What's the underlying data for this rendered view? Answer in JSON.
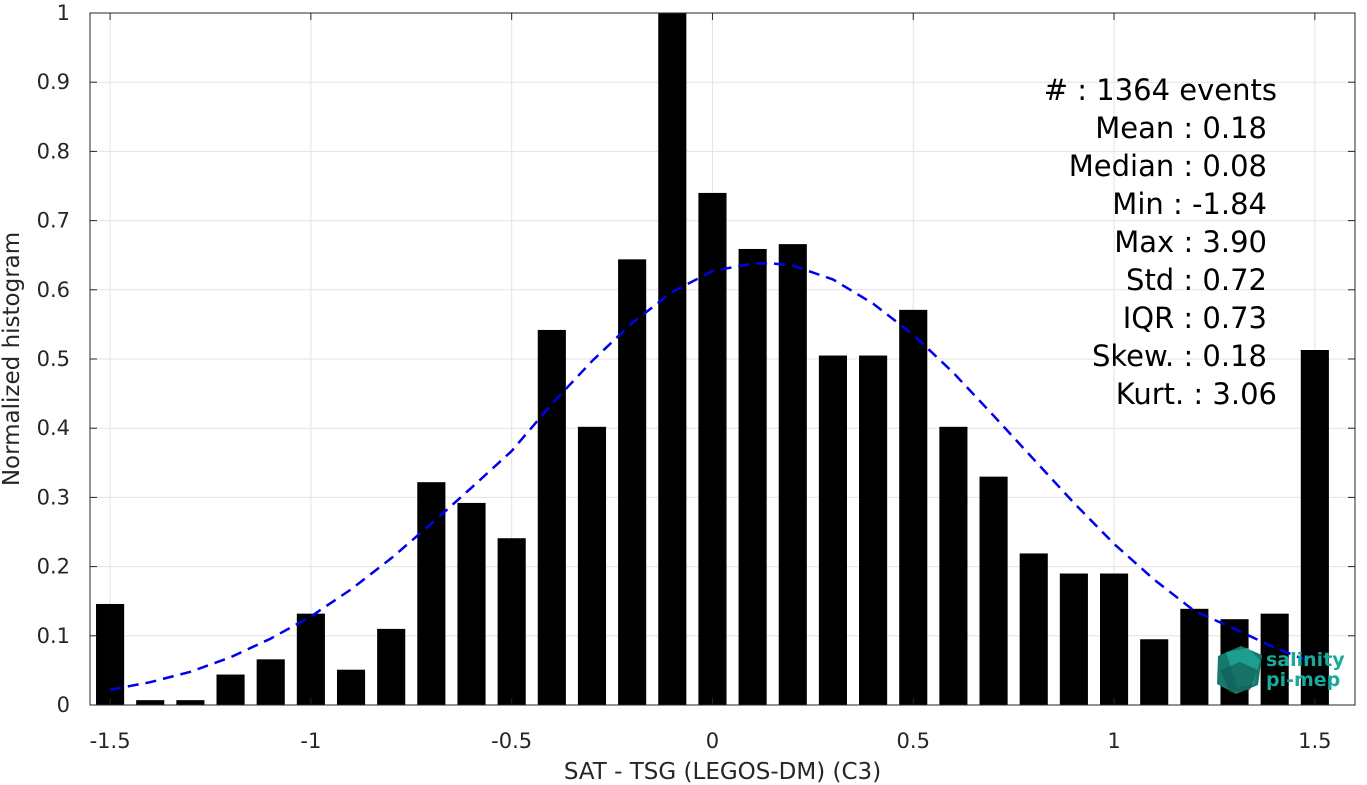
{
  "chart_data": {
    "type": "bar",
    "xlabel": "SAT - TSG (LEGOS-DM) (C3)",
    "ylabel": "Normalized histogram",
    "xlim": [
      -1.55,
      1.6
    ],
    "ylim": [
      0,
      1
    ],
    "grid": true,
    "x_ticks": [
      -1.5,
      -1,
      -0.5,
      0,
      0.5,
      1,
      1.5
    ],
    "x_tick_labels": [
      "-1.5",
      "-1",
      "-0.5",
      "0",
      "0.5",
      "1",
      "1.5"
    ],
    "y_ticks": [
      0,
      0.1,
      0.2,
      0.3,
      0.4,
      0.5,
      0.6,
      0.7,
      0.8,
      0.9,
      1
    ],
    "y_tick_labels": [
      "0",
      "0.1",
      "0.2",
      "0.3",
      "0.4",
      "0.5",
      "0.6",
      "0.7",
      "0.8",
      "0.9",
      "1"
    ],
    "bar_width": 0.07,
    "bar_color": "#000000",
    "x": [
      -1.5,
      -1.4,
      -1.3,
      -1.2,
      -1.1,
      -1.0,
      -0.9,
      -0.8,
      -0.7,
      -0.6,
      -0.5,
      -0.4,
      -0.3,
      -0.2,
      -0.1,
      0.0,
      0.1,
      0.2,
      0.3,
      0.4,
      0.5,
      0.6,
      0.7,
      0.8,
      0.9,
      1.0,
      1.1,
      1.2,
      1.3,
      1.4,
      1.5
    ],
    "values": [
      0.146,
      0.007,
      0.007,
      0.044,
      0.066,
      0.132,
      0.051,
      0.11,
      0.322,
      0.292,
      0.241,
      0.542,
      0.402,
      0.644,
      1.0,
      0.74,
      0.659,
      0.666,
      0.505,
      0.505,
      0.571,
      0.402,
      0.33,
      0.219,
      0.19,
      0.19,
      0.095,
      0.139,
      0.124,
      0.132,
      0.513
    ],
    "fit_curve": {
      "style": "dashed",
      "color": "#0000ee",
      "x": [
        -1.5,
        -1.4,
        -1.3,
        -1.2,
        -1.1,
        -1.0,
        -0.9,
        -0.8,
        -0.7,
        -0.6,
        -0.5,
        -0.4,
        -0.3,
        -0.2,
        -0.1,
        0.0,
        0.1,
        0.15,
        0.2,
        0.3,
        0.4,
        0.5,
        0.6,
        0.7,
        0.8,
        0.9,
        1.0,
        1.1,
        1.2,
        1.3,
        1.4,
        1.5
      ],
      "y": [
        0.022,
        0.033,
        0.048,
        0.069,
        0.096,
        0.128,
        0.167,
        0.212,
        0.262,
        0.314,
        0.367,
        0.435,
        0.497,
        0.552,
        0.597,
        0.627,
        0.638,
        0.638,
        0.635,
        0.615,
        0.58,
        0.535,
        0.48,
        0.418,
        0.355,
        0.292,
        0.233,
        0.181,
        0.136,
        0.11,
        0.083,
        0.06
      ]
    },
    "stats": [
      "#  : 1364 events",
      "Mean : 0.18",
      "Median : 0.08",
      "Min : -1.84",
      "Max : 3.90",
      "Std : 0.72",
      "IQR : 0.73",
      "Skew. : 0.18",
      "Kurt. : 3.06"
    ]
  },
  "logo": {
    "line1": "salinity",
    "line2": "pi-mep",
    "color": "#1aa89a"
  }
}
